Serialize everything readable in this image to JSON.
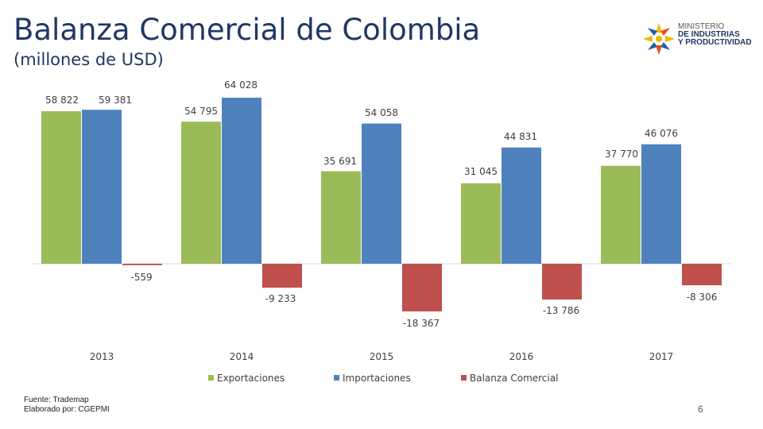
{
  "slide": {
    "title": "Balanza Comercial de Colombia",
    "subtitle": "(millones de USD)",
    "logo": {
      "line1": "MINISTERIO",
      "line2": "DE INDUSTRIAS",
      "line3": "Y PRODUCTIVIDAD"
    },
    "footer": {
      "source": "Fuente: Trademap",
      "prepared_by": "Elaborado por: CGEPMI"
    },
    "page_number": "6"
  },
  "chart_data": {
    "type": "bar",
    "title": "",
    "categories": [
      "2013",
      "2014",
      "2015",
      "2016",
      "2017"
    ],
    "series": [
      {
        "name": "Exportaciones",
        "color": "#9bbb59",
        "values": [
          58822,
          54795,
          35691,
          31045,
          37770
        ],
        "labels": [
          "58 822",
          "54 795",
          "35 691",
          "31 045",
          "37 770"
        ]
      },
      {
        "name": "Importaciones",
        "color": "#4f81bd",
        "values": [
          59381,
          64028,
          54058,
          44831,
          46076
        ],
        "labels": [
          "59 381",
          "64 028",
          "54 058",
          "44 831",
          "46 076"
        ]
      },
      {
        "name": "Balanza Comercial",
        "color": "#c0504d",
        "values": [
          -559,
          -9233,
          -18367,
          -13786,
          -8306
        ],
        "labels": [
          "-559",
          "-9 233",
          "-18 367",
          "-13 786",
          "-8 306"
        ]
      }
    ],
    "ylim": [
      -20000,
      66000
    ],
    "grid": false,
    "legend": "bottom"
  }
}
